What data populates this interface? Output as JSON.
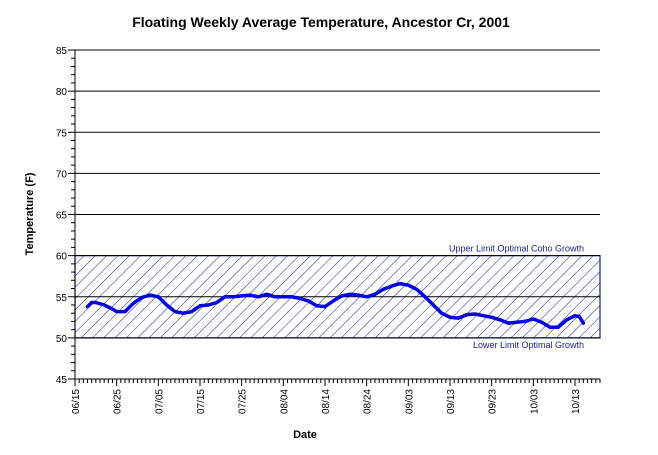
{
  "chart_data": {
    "type": "line",
    "title": "Floating Weekly Average Temperature, Ancestor Cr, 2001",
    "xlabel": "Date",
    "ylabel": "Temperature (F)",
    "ylim": [
      45,
      85
    ],
    "y_ticks": [
      45,
      50,
      55,
      60,
      65,
      70,
      75,
      80,
      85
    ],
    "x_range_days": [
      0,
      126
    ],
    "x_ticks": [
      {
        "label": "06/15",
        "day": 0
      },
      {
        "label": "06/25",
        "day": 10
      },
      {
        "label": "07/05",
        "day": 20
      },
      {
        "label": "07/15",
        "day": 30
      },
      {
        "label": "07/25",
        "day": 40
      },
      {
        "label": "08/04",
        "day": 50
      },
      {
        "label": "08/14",
        "day": 60
      },
      {
        "label": "08/24",
        "day": 70
      },
      {
        "label": "09/03",
        "day": 80
      },
      {
        "label": "09/13",
        "day": 90
      },
      {
        "label": "09/23",
        "day": 100
      },
      {
        "label": "10/03",
        "day": 110
      },
      {
        "label": "10/13",
        "day": 120
      }
    ],
    "grid": "horizontal major lines",
    "band": {
      "lower": 50,
      "upper": 60,
      "upper_label": "Upper Limit Optimal Coho Growth",
      "lower_label": "Lower Limit Optimal Growth",
      "fill": "diagonal hatch",
      "color": "#1b1b9a"
    },
    "series": [
      {
        "color": "#0000ee",
        "points": [
          [
            3,
            53.8
          ],
          [
            4,
            54.3
          ],
          [
            5,
            54.3
          ],
          [
            7,
            54.0
          ],
          [
            9,
            53.5
          ],
          [
            10,
            53.2
          ],
          [
            12,
            53.2
          ],
          [
            14,
            54.2
          ],
          [
            16,
            54.9
          ],
          [
            18,
            55.2
          ],
          [
            20,
            55.0
          ],
          [
            22,
            54.0
          ],
          [
            24,
            53.2
          ],
          [
            26,
            53.0
          ],
          [
            28,
            53.2
          ],
          [
            30,
            53.9
          ],
          [
            32,
            54.0
          ],
          [
            34,
            54.3
          ],
          [
            36,
            55.0
          ],
          [
            38,
            55.0
          ],
          [
            40,
            55.1
          ],
          [
            42,
            55.2
          ],
          [
            44,
            55.0
          ],
          [
            46,
            55.3
          ],
          [
            48,
            55.0
          ],
          [
            50,
            55.0
          ],
          [
            52,
            55.0
          ],
          [
            54,
            54.8
          ],
          [
            56,
            54.5
          ],
          [
            58,
            53.9
          ],
          [
            60,
            53.8
          ],
          [
            62,
            54.5
          ],
          [
            64,
            55.1
          ],
          [
            66,
            55.3
          ],
          [
            68,
            55.2
          ],
          [
            70,
            55.0
          ],
          [
            72,
            55.3
          ],
          [
            74,
            55.9
          ],
          [
            76,
            56.3
          ],
          [
            78,
            56.6
          ],
          [
            80,
            56.4
          ],
          [
            82,
            55.9
          ],
          [
            84,
            55.0
          ],
          [
            86,
            54.0
          ],
          [
            88,
            53.0
          ],
          [
            90,
            52.5
          ],
          [
            92,
            52.4
          ],
          [
            94,
            52.8
          ],
          [
            96,
            52.9
          ],
          [
            98,
            52.7
          ],
          [
            100,
            52.5
          ],
          [
            102,
            52.2
          ],
          [
            104,
            51.8
          ],
          [
            106,
            51.9
          ],
          [
            108,
            52.0
          ],
          [
            110,
            52.3
          ],
          [
            112,
            51.9
          ],
          [
            114,
            51.3
          ],
          [
            116,
            51.3
          ],
          [
            118,
            52.2
          ],
          [
            120,
            52.7
          ],
          [
            121,
            52.6
          ],
          [
            122,
            51.8
          ]
        ]
      }
    ]
  }
}
